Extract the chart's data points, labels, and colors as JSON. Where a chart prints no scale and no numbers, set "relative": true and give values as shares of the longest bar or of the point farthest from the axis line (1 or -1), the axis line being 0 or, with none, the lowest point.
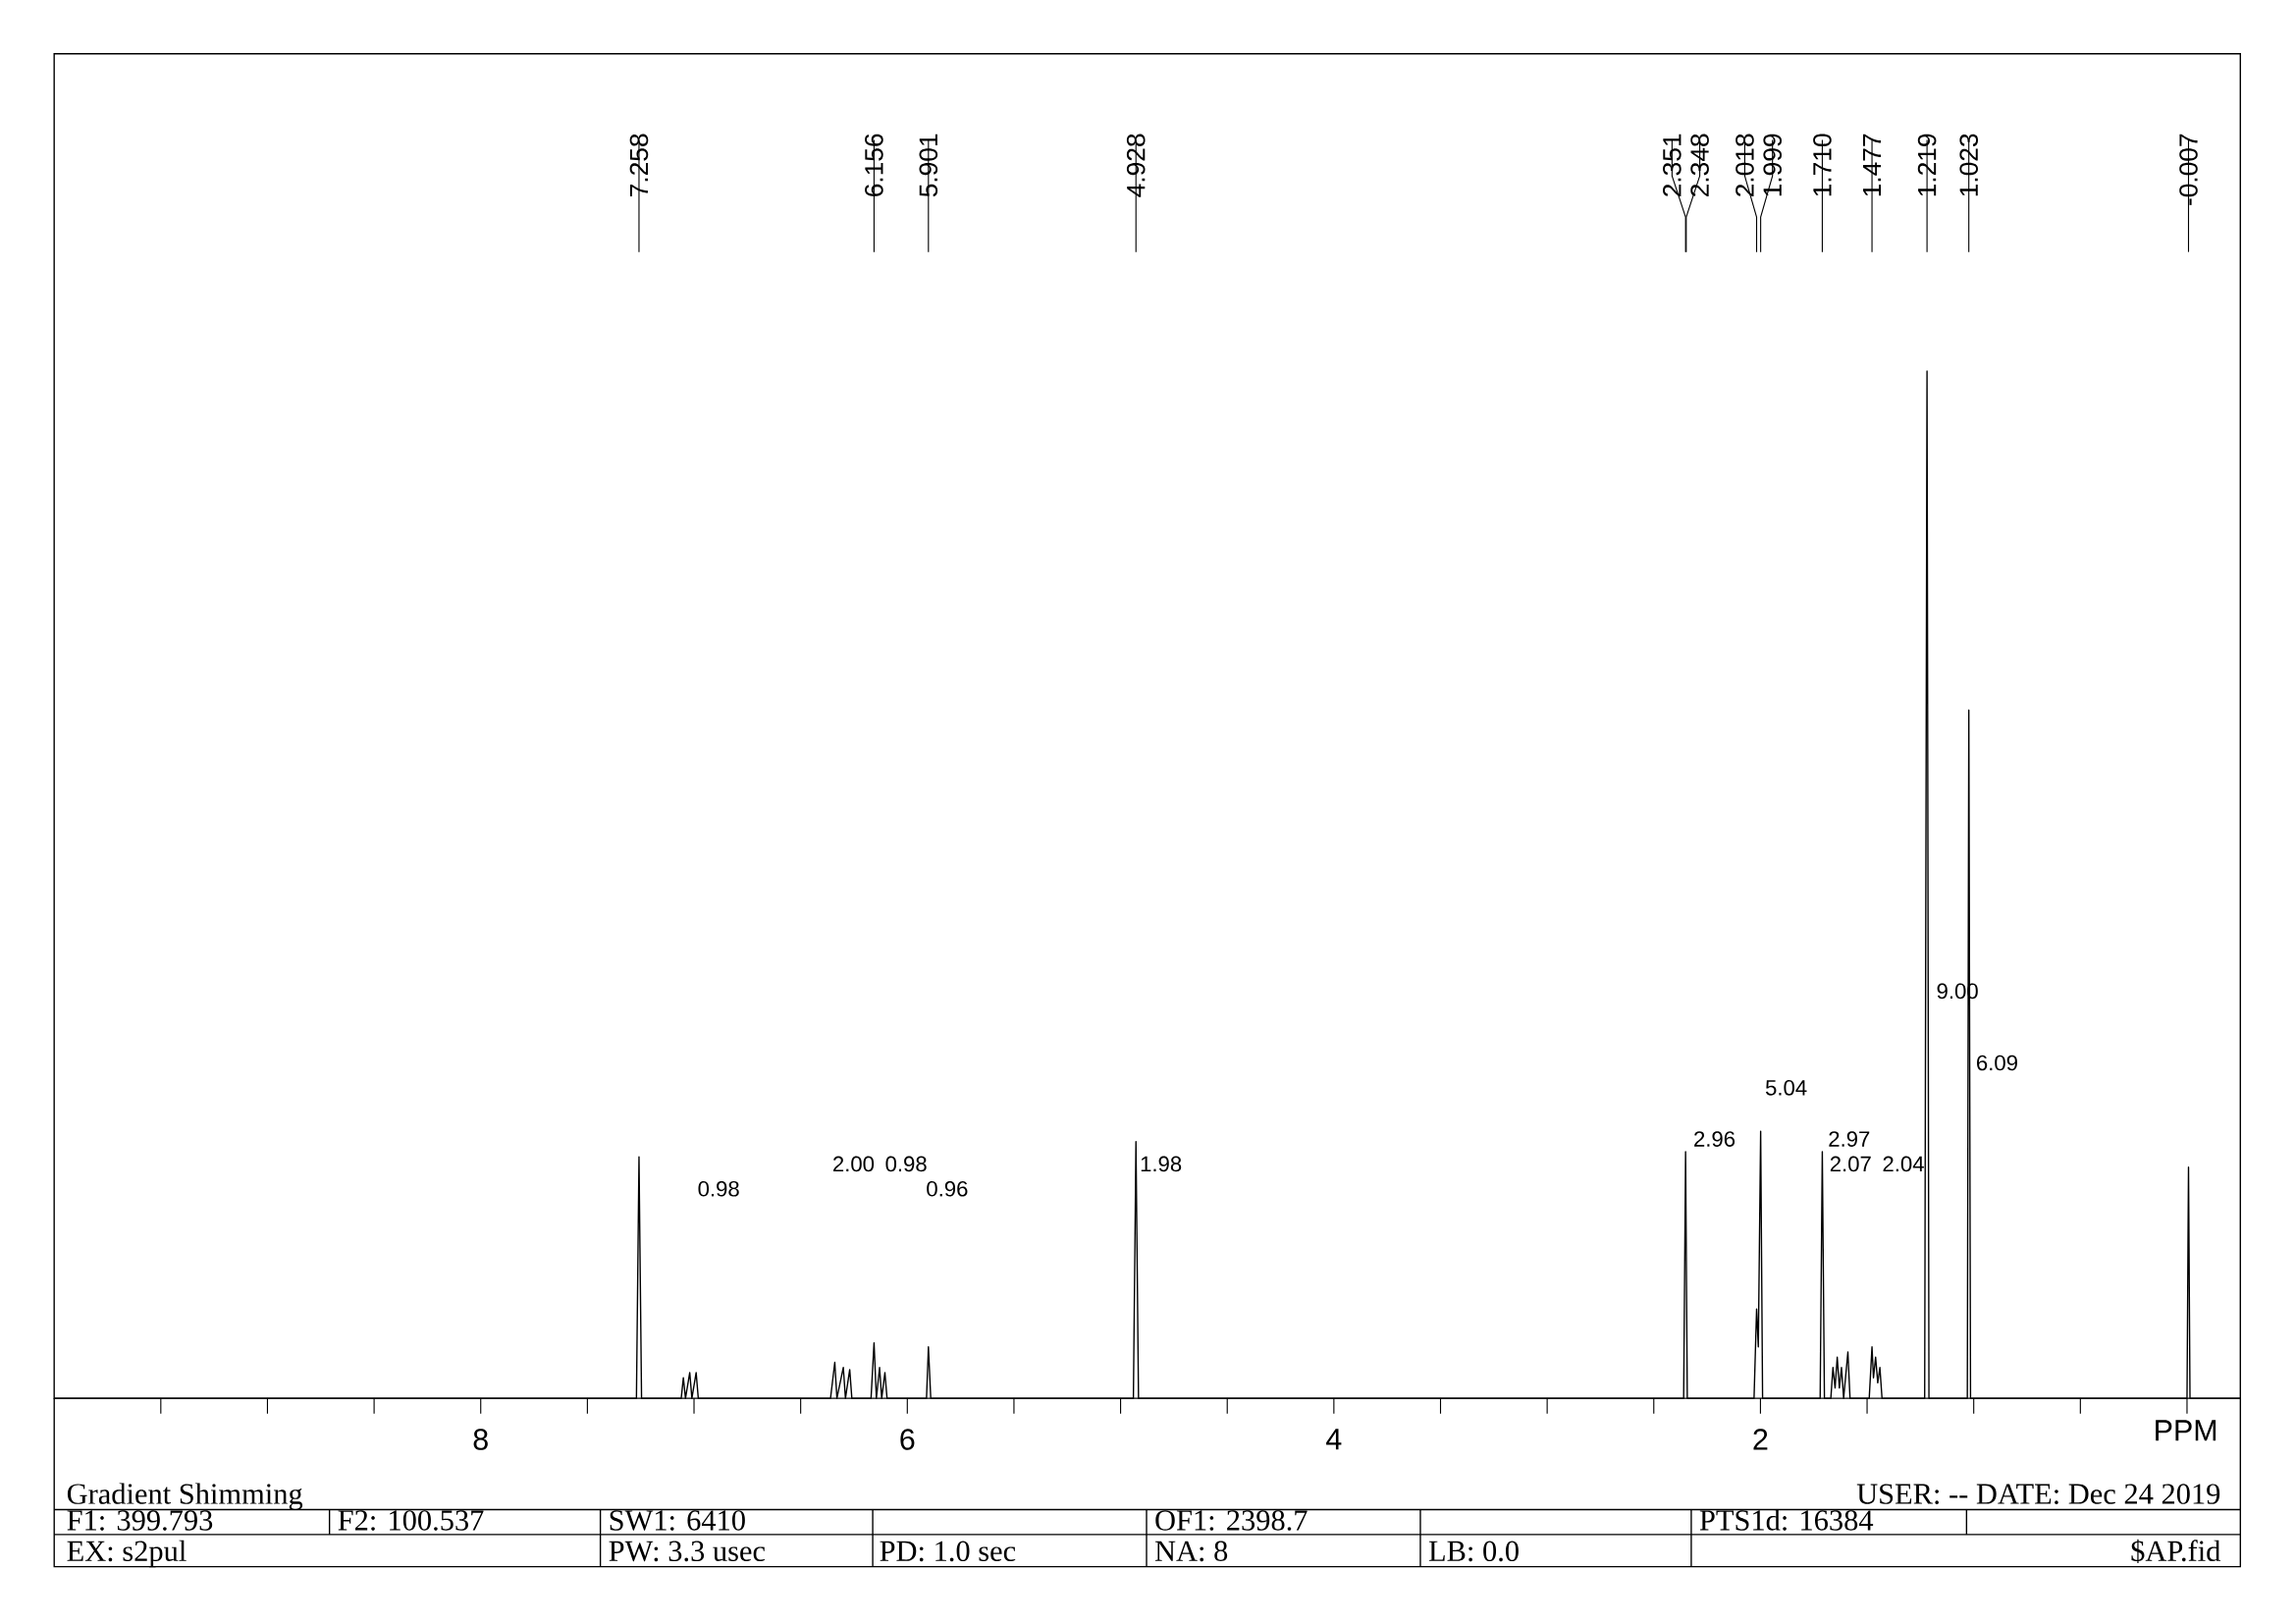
{
  "chart_data": {
    "type": "line",
    "relative": true,
    "color": "#000000",
    "xlabel": "PPM",
    "xlim": [
      10,
      -0.25
    ],
    "xticks": [
      {
        "value": 9.5,
        "label": null
      },
      {
        "value": 9,
        "label": null
      },
      {
        "value": 8.5,
        "label": null
      },
      8,
      {
        "value": 7.5,
        "label": null
      },
      {
        "value": 7,
        "label": null
      },
      {
        "value": 6.5,
        "label": null
      },
      6,
      {
        "value": 5.5,
        "label": null
      },
      {
        "value": 5,
        "label": null
      },
      {
        "value": 4.5,
        "label": null
      },
      4,
      {
        "value": 3.5,
        "label": null
      },
      {
        "value": 3,
        "label": null
      },
      {
        "value": 2.5,
        "label": null
      },
      2,
      {
        "value": 1.5,
        "label": null
      },
      {
        "value": 1,
        "label": null
      },
      {
        "value": 0.5,
        "label": null
      },
      {
        "value": 0,
        "label": null
      }
    ],
    "x": [
      10,
      7.27,
      7.258,
      7.246,
      7.06,
      7.05,
      7.04,
      7.02,
      7.01,
      6.99,
      6.98,
      6.36,
      6.34,
      6.33,
      6.3,
      6.29,
      6.27,
      6.26,
      6.17,
      6.156,
      6.145,
      6.13,
      6.12,
      6.105,
      6.095,
      5.91,
      5.901,
      5.89,
      4.94,
      4.928,
      4.916,
      2.36,
      2.351,
      2.343,
      2.03,
      2.018,
      2.01,
      1.999,
      1.99,
      1.72,
      1.71,
      1.7,
      1.67,
      1.66,
      1.65,
      1.64,
      1.63,
      1.62,
      1.61,
      1.59,
      1.58,
      1.49,
      1.477,
      1.47,
      1.46,
      1.45,
      1.44,
      1.43,
      1.23,
      1.219,
      1.21,
      1.03,
      1.023,
      1.015,
      0.0,
      -0.007,
      -0.014,
      -0.25
    ],
    "values": [
      0,
      0,
      0.235,
      0,
      0,
      0.02,
      0,
      0.025,
      0,
      0.025,
      0,
      0,
      0.035,
      0,
      0.03,
      0,
      0.028,
      0,
      0,
      0.054,
      0,
      0.03,
      0,
      0.025,
      0,
      0,
      0.05,
      0,
      0,
      0.25,
      0,
      0,
      0.24,
      0,
      0,
      0.087,
      0.05,
      0.26,
      0,
      0,
      0.24,
      0,
      0,
      0.03,
      0.01,
      0.04,
      0.01,
      0.03,
      0,
      0.045,
      0,
      0,
      0.05,
      0.02,
      0.04,
      0.015,
      0.03,
      0,
      0,
      1,
      0,
      0,
      0.67,
      0,
      0,
      0.225,
      0,
      0
    ],
    "annotations": [
      {
        "text": "7.258",
        "x": 7.258
      },
      {
        "text": "6.156",
        "x": 6.156
      },
      {
        "text": "5.901",
        "x": 5.901
      },
      {
        "text": "4.928",
        "x": 4.928
      },
      {
        "text": "2.351",
        "x": 2.351
      },
      {
        "text": "2.348",
        "x": 2.348
      },
      {
        "text": "2.018",
        "x": 2.018
      },
      {
        "text": "1.999",
        "x": 1.999
      },
      {
        "text": "1.710",
        "x": 1.71
      },
      {
        "text": "1.477",
        "x": 1.477
      },
      {
        "text": "1.219",
        "x": 1.219
      },
      {
        "text": "1.023",
        "x": 1.023
      },
      {
        "text": "-0.007",
        "x": -0.007
      },
      "0.98",
      "2.00",
      "0.98",
      "0.96",
      "1.98",
      "2.96",
      "5.04",
      "2.97",
      "2.07",
      "2.04",
      "9.00",
      "6.09",
      "Gradient Shimming",
      "USER:  -- DATE: Dec 24 2019",
      "F1: 399.793",
      "F2: 100.537",
      "SW1: 6410",
      "OF1: 2398.7",
      "PTS1d: 16384",
      "EX: s2pul",
      "PW: 3.3  usec",
      "PD: 1.0  sec",
      "NA: 8",
      "LB: 0.0",
      "$AP.fid"
    ]
  }
}
